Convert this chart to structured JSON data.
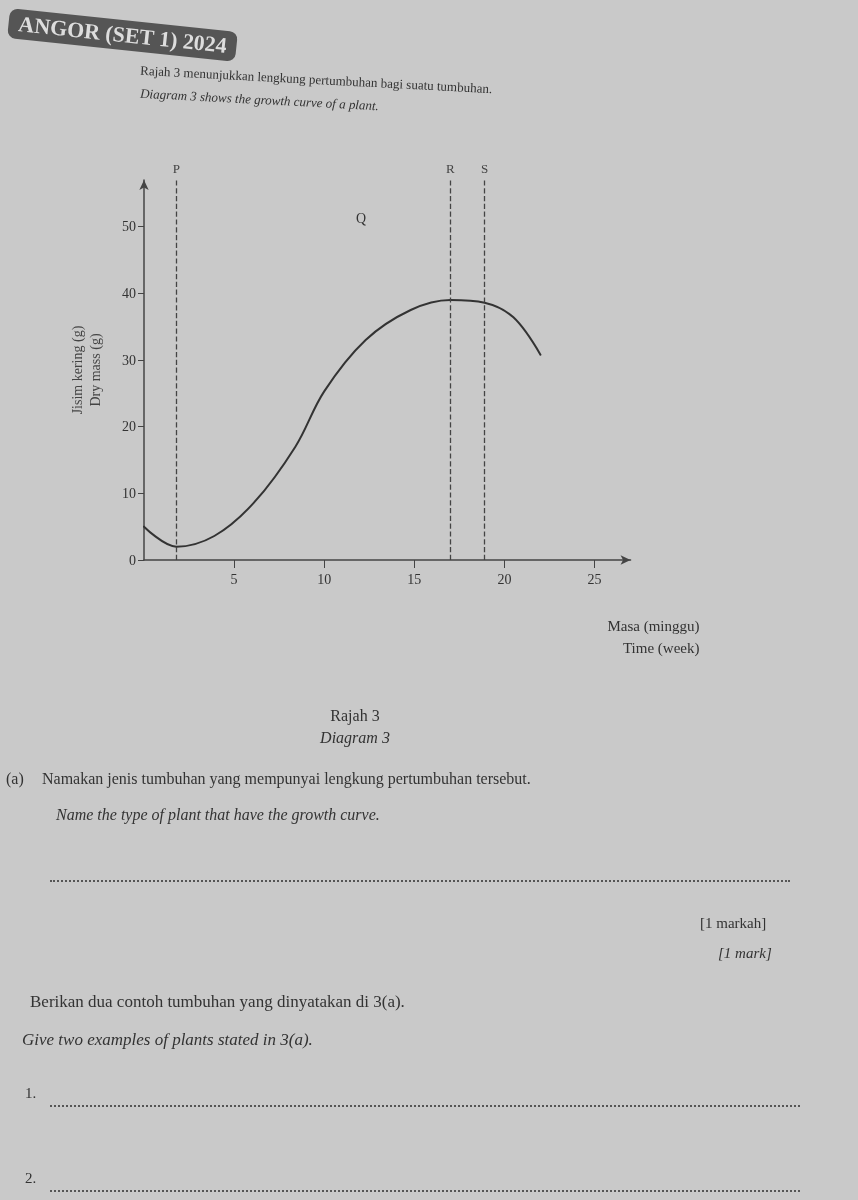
{
  "chart_data": {
    "type": "line",
    "title": "Rajah 3",
    "subtitle": "Diagram 3",
    "xlabel": "Masa (minggu)\nTime (week)",
    "ylabel": "Jisim kering (g)\nDry mass (g)",
    "x": [
      0,
      1.8,
      3.9,
      6.1,
      8.4,
      10,
      12.3,
      14.8,
      17,
      18.9,
      20.5,
      22
    ],
    "series": [
      {
        "color": "#333333",
        "values": [
          5,
          2,
          3.6,
          8.6,
          17,
          25.3,
          33,
          37.5,
          39,
          38.6,
          36.4,
          30.8
        ]
      }
    ],
    "xlim": [
      0,
      27
    ],
    "xticks": [
      5,
      10,
      15,
      20,
      25
    ],
    "ylim": [
      0,
      57
    ],
    "yticks": [
      0,
      10,
      20,
      30,
      40,
      50
    ],
    "grid": false,
    "marker": "none",
    "line_style": "solid",
    "ref_lines": [
      {
        "axis": "x",
        "value": 1.8,
        "label": "P",
        "line_style": "dashed",
        "color": "#444444"
      },
      {
        "axis": "x",
        "value": 17,
        "label": "R",
        "line_style": "dashed",
        "color": "#444444"
      },
      {
        "axis": "x",
        "value": 18.9,
        "label": "S",
        "line_style": "dashed",
        "color": "#444444"
      }
    ],
    "annotations": [
      "ANGOR (SET 1) 2024",
      "Rajah 3 menunjukkan lengkung pertumbuhan bagi suatu tumbuhan.",
      "Diagram 3 shows the growth curve of a plant.",
      "Q",
      "(a)",
      "Namakan jenis tumbuhan yang mempunyai lengkung pertumbuhan tersebut.",
      "Name the type of plant that have the growth curve.",
      "[1 markah]",
      "[1 mark]",
      "Berikan dua contoh tumbuhan yang dinyatakan di 3(a).",
      "Give two examples of plants stated in 3(a).",
      "1.",
      "2."
    ]
  }
}
